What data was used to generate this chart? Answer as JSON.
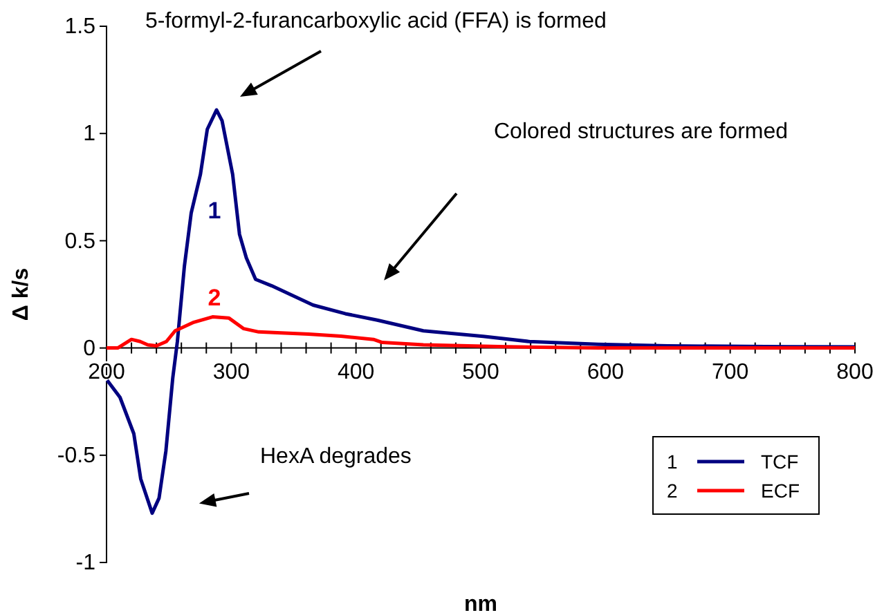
{
  "chart_data": {
    "type": "line",
    "xlabel": "nm",
    "ylabel": "Δ k/s",
    "xlim": [
      200,
      800
    ],
    "xticks": [
      200,
      {
        "value": 220,
        "label": null
      },
      {
        "value": 240,
        "label": null
      },
      {
        "value": 260,
        "label": null
      },
      {
        "value": 280,
        "label": null
      },
      300,
      {
        "value": 320,
        "label": null
      },
      {
        "value": 340,
        "label": null
      },
      {
        "value": 360,
        "label": null
      },
      {
        "value": 380,
        "label": null
      },
      400,
      {
        "value": 420,
        "label": null
      },
      {
        "value": 440,
        "label": null
      },
      {
        "value": 460,
        "label": null
      },
      {
        "value": 480,
        "label": null
      },
      500,
      {
        "value": 520,
        "label": null
      },
      {
        "value": 540,
        "label": null
      },
      {
        "value": 560,
        "label": null
      },
      {
        "value": 580,
        "label": null
      },
      600,
      {
        "value": 620,
        "label": null
      },
      {
        "value": 640,
        "label": null
      },
      {
        "value": 660,
        "label": null
      },
      {
        "value": 680,
        "label": null
      },
      700,
      {
        "value": 720,
        "label": null
      },
      {
        "value": 740,
        "label": null
      },
      {
        "value": 760,
        "label": null
      },
      {
        "value": 780,
        "label": null
      },
      800
    ],
    "ylim": [
      -1,
      1.5
    ],
    "yticks": [
      -1,
      -0.5,
      0,
      0.5,
      1,
      1.5
    ],
    "legend": "bottom right",
    "grid": false,
    "marker": "none",
    "line_style": "solid",
    "series": [
      {
        "name": "TCF",
        "color": "#000080",
        "x": [
          200.5,
          210.8,
          221.9,
          227.4,
          236.6,
          242.1,
          247.6,
          253.1,
          256.8,
          262.4,
          267.9,
          275.3,
          280.8,
          288.2,
          292.6,
          301.1,
          306.6,
          312.1,
          319.5,
          332.4,
          347.2,
          365.6,
          391.4,
          417,
          454,
          502,
          539,
          594,
          650,
          745,
          800
        ],
        "values": [
          -0.15,
          -0.23,
          -0.4,
          -0.61,
          -0.77,
          -0.7,
          -0.48,
          -0.14,
          0.03,
          0.38,
          0.63,
          0.81,
          1.02,
          1.11,
          1.06,
          0.81,
          0.53,
          0.42,
          0.32,
          0.29,
          0.25,
          0.2,
          0.16,
          0.13,
          0.08,
          0.054,
          0.03,
          0.017,
          0.01,
          0.006,
          0.005
        ]
      },
      {
        "name": "ECF",
        "color": "#ff0000",
        "x": [
          200,
          209,
          220,
          227,
          233,
          240,
          248,
          255,
          270,
          285,
          298,
          310,
          322,
          340,
          362,
          388,
          414,
          421,
          454,
          520,
          594,
          800
        ],
        "values": [
          0,
          0,
          0.04,
          0.03,
          0.015,
          0.01,
          0.03,
          0.08,
          0.12,
          0.145,
          0.14,
          0.09,
          0.075,
          0.07,
          0.065,
          0.055,
          0.04,
          0.026,
          0.015,
          0.006,
          0,
          0
        ]
      }
    ],
    "annotations": [
      "5-formyl-2-furancarboxylic acid (FFA) is formed",
      "Colored structures are formed",
      "HexA degrades",
      "1",
      "2"
    ]
  }
}
